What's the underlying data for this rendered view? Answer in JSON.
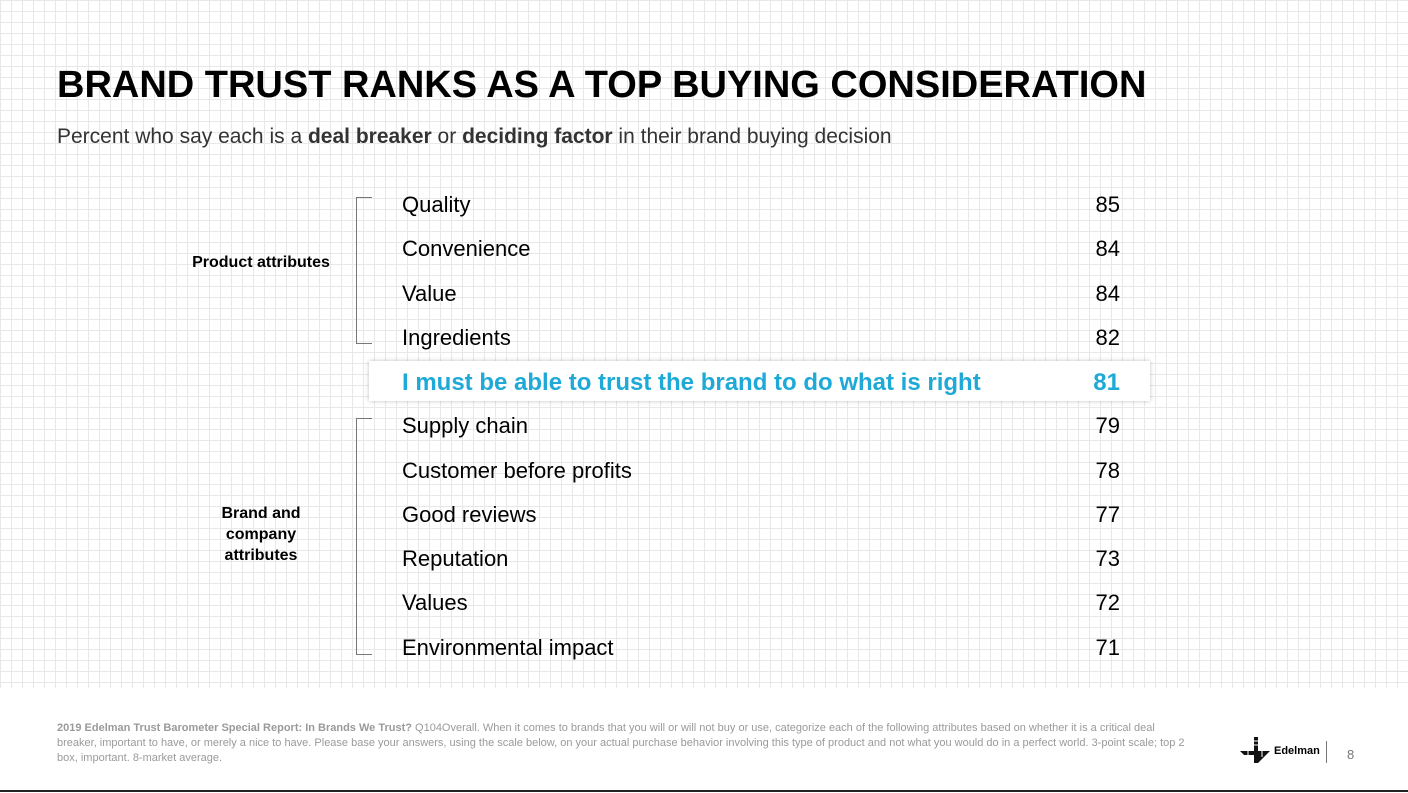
{
  "title": "BRAND TRUST RANKS AS A TOP BUYING CONSIDERATION",
  "subtitle": {
    "pre": "Percent who say each is a ",
    "bold1": "deal breaker",
    "mid": " or ",
    "bold2": "deciding factor",
    "post": " in their brand buying decision"
  },
  "groups": {
    "product": "Product attributes",
    "brand": "Brand and company attributes"
  },
  "rows": [
    {
      "label": "Quality",
      "value": "85"
    },
    {
      "label": "Convenience",
      "value": "84"
    },
    {
      "label": "Value",
      "value": "84"
    },
    {
      "label": "Ingredients",
      "value": "82"
    },
    {
      "label": "I must be able to trust the brand to do what is right",
      "value": "81"
    },
    {
      "label": "Supply chain",
      "value": "79"
    },
    {
      "label": "Customer before profits",
      "value": "78"
    },
    {
      "label": "Good reviews",
      "value": "77"
    },
    {
      "label": "Reputation",
      "value": "73"
    },
    {
      "label": "Values",
      "value": "72"
    },
    {
      "label": "Environmental impact",
      "value": "71"
    }
  ],
  "highlight_color": "#1fa9d6",
  "footnote": {
    "bold": "2019 Edelman Trust Barometer Special Report: In Brands We Trust?",
    "text": " Q104Overall. When it comes to brands that you will or will not buy or use, categorize each of the following attributes based on whether it is a critical deal breaker, important to have, or merely a nice to have. Please base your answers, using the scale below, on your actual purchase behavior involving this type of product and not what you would do in a perfect world. 3-point scale; top 2 box, important. 8-market average."
  },
  "logo": {
    "text": "Edelman",
    "icon": "edelman-logo-icon"
  },
  "page_number": "8"
}
